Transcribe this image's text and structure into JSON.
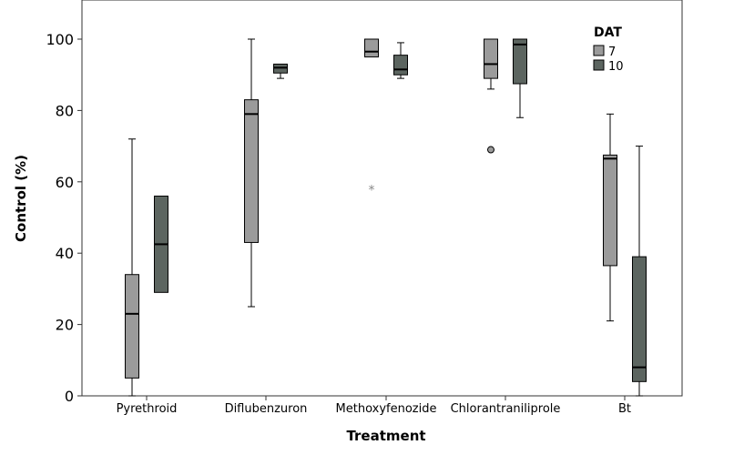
{
  "chart_data": {
    "type": "box",
    "xlabel": "Treatment",
    "ylabel": "Control (%)",
    "ylim": [
      0,
      110
    ],
    "yticks": [
      0,
      20,
      40,
      60,
      80,
      100
    ],
    "grid": false,
    "legend": {
      "title": "DAT",
      "position": "top-right"
    },
    "categories": [
      "Pyrethroid",
      "Diflubenzuron",
      "Methoxyfenozide",
      "Chlorantraniliprole",
      "Bt"
    ],
    "series": [
      {
        "name": "7",
        "color": "#9b9b9b",
        "boxes": [
          {
            "min": 0,
            "q1": 5,
            "median": 23,
            "q3": 34,
            "max": 72,
            "outliers": [],
            "extremes": []
          },
          {
            "min": 25,
            "q1": 43,
            "median": 79,
            "q3": 83,
            "max": 100,
            "outliers": [],
            "extremes": []
          },
          {
            "min": 95,
            "q1": 95,
            "median": 96.5,
            "q3": 100,
            "max": 100,
            "outliers": [],
            "extremes": [
              58
            ]
          },
          {
            "min": 86,
            "q1": 89,
            "median": 93,
            "q3": 100,
            "max": 100,
            "outliers": [
              69
            ],
            "extremes": []
          },
          {
            "min": 21,
            "q1": 36.5,
            "median": 66.5,
            "q3": 67.5,
            "max": 79,
            "outliers": [],
            "extremes": []
          }
        ]
      },
      {
        "name": "10",
        "color": "#5c6560",
        "boxes": [
          {
            "min": 29,
            "q1": 29,
            "median": 42.5,
            "q3": 56,
            "max": 56,
            "outliers": [],
            "extremes": []
          },
          {
            "min": 89,
            "q1": 90.5,
            "median": 92,
            "q3": 93,
            "max": 93,
            "outliers": [],
            "extremes": []
          },
          {
            "min": 89,
            "q1": 90,
            "median": 91.5,
            "q3": 95.5,
            "max": 99,
            "outliers": [],
            "extremes": []
          },
          {
            "min": 78,
            "q1": 87.5,
            "median": 98.5,
            "q3": 100,
            "max": 100,
            "outliers": [],
            "extremes": []
          },
          {
            "min": 0,
            "q1": 4,
            "median": 8,
            "q3": 39,
            "max": 70,
            "outliers": [],
            "extremes": []
          }
        ]
      }
    ]
  }
}
